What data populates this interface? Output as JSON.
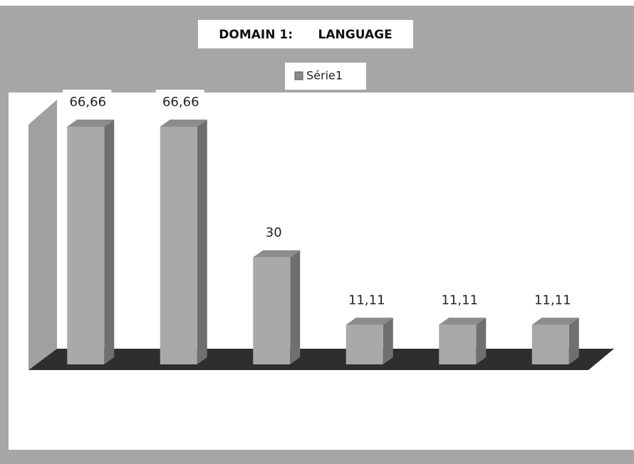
{
  "chart_data": {
    "type": "bar3d",
    "title": "DOMAIN 1:      LANGUAGE",
    "categories": [
      null,
      null,
      null,
      null,
      null,
      null
    ],
    "series": [
      {
        "name": "Série1",
        "color": "#a9a9a9",
        "values": [
          66.66,
          66.66,
          30,
          11.11,
          11.11,
          11.11
        ],
        "value_labels": [
          "66,66",
          "66,66",
          "30",
          "11,11",
          "11,11",
          "11,11"
        ]
      }
    ]
  }
}
